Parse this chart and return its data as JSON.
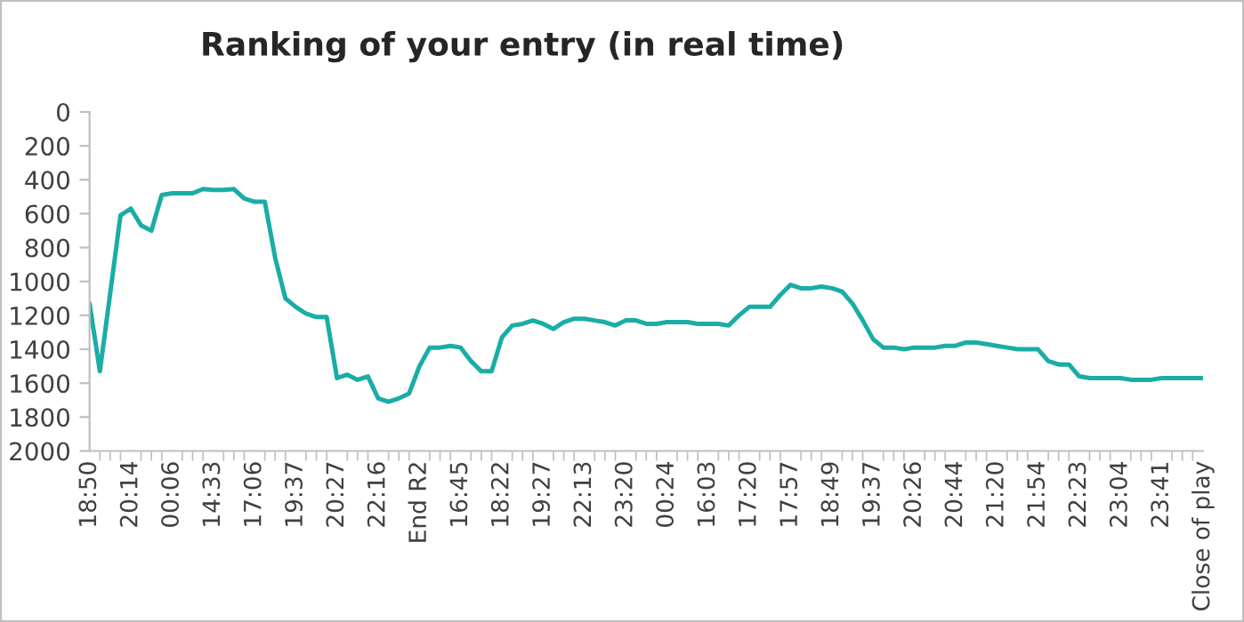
{
  "chart_data": {
    "type": "line",
    "title": "Ranking of your entry (in real time)",
    "categories": [
      "18:50",
      null,
      null,
      null,
      "20:14",
      null,
      null,
      null,
      "00:06",
      null,
      null,
      null,
      "14:33",
      null,
      null,
      null,
      "17:06",
      null,
      null,
      null,
      "19:37",
      null,
      null,
      null,
      "20:27",
      null,
      null,
      null,
      "22:16",
      null,
      null,
      null,
      "End R2",
      null,
      null,
      null,
      "16:45",
      null,
      null,
      null,
      "18:22",
      null,
      null,
      null,
      "19:27",
      null,
      null,
      null,
      "22:13",
      null,
      null,
      null,
      "23:20",
      null,
      null,
      null,
      "00:24",
      null,
      null,
      null,
      "16:03",
      null,
      null,
      null,
      "17:20",
      null,
      null,
      null,
      "17:57",
      null,
      null,
      null,
      "18:49",
      null,
      null,
      null,
      "19:37",
      null,
      null,
      null,
      "20:26",
      null,
      null,
      null,
      "20:44",
      null,
      null,
      null,
      "21:20",
      null,
      null,
      null,
      "21:54",
      null,
      null,
      null,
      "22:23",
      null,
      null,
      null,
      "23:04",
      null,
      null,
      null,
      "23:41",
      null,
      null,
      null,
      "Close of play"
    ],
    "series": [
      {
        "color": "#1aada6",
        "values": [
          1130,
          1530,
          1070,
          610,
          570,
          670,
          700,
          490,
          480,
          480,
          480,
          455,
          460,
          460,
          455,
          510,
          530,
          530,
          860,
          1100,
          1150,
          1190,
          1210,
          1210,
          1570,
          1550,
          1580,
          1560,
          1690,
          1710,
          1690,
          1660,
          1500,
          1390,
          1390,
          1380,
          1390,
          1470,
          1530,
          1530,
          1330,
          1260,
          1250,
          1230,
          1250,
          1280,
          1240,
          1220,
          1220,
          1230,
          1240,
          1260,
          1230,
          1230,
          1250,
          1250,
          1240,
          1240,
          1240,
          1250,
          1250,
          1250,
          1260,
          1200,
          1150,
          1150,
          1150,
          1080,
          1020,
          1040,
          1040,
          1030,
          1040,
          1060,
          1130,
          1230,
          1340,
          1390,
          1390,
          1400,
          1390,
          1390,
          1390,
          1380,
          1380,
          1360,
          1360,
          1370,
          1380,
          1390,
          1400,
          1400,
          1400,
          1470,
          1490,
          1490,
          1560,
          1570,
          1570,
          1570,
          1570,
          1580,
          1580,
          1580,
          1570,
          1570,
          1570,
          1570,
          1570
        ]
      }
    ],
    "ylim": [
      2000,
      0
    ],
    "yticks": [
      0,
      200,
      400,
      600,
      800,
      1000,
      1200,
      1400,
      1600,
      1800,
      2000
    ],
    "grid": false,
    "line_style": "solid",
    "marker": "none"
  }
}
